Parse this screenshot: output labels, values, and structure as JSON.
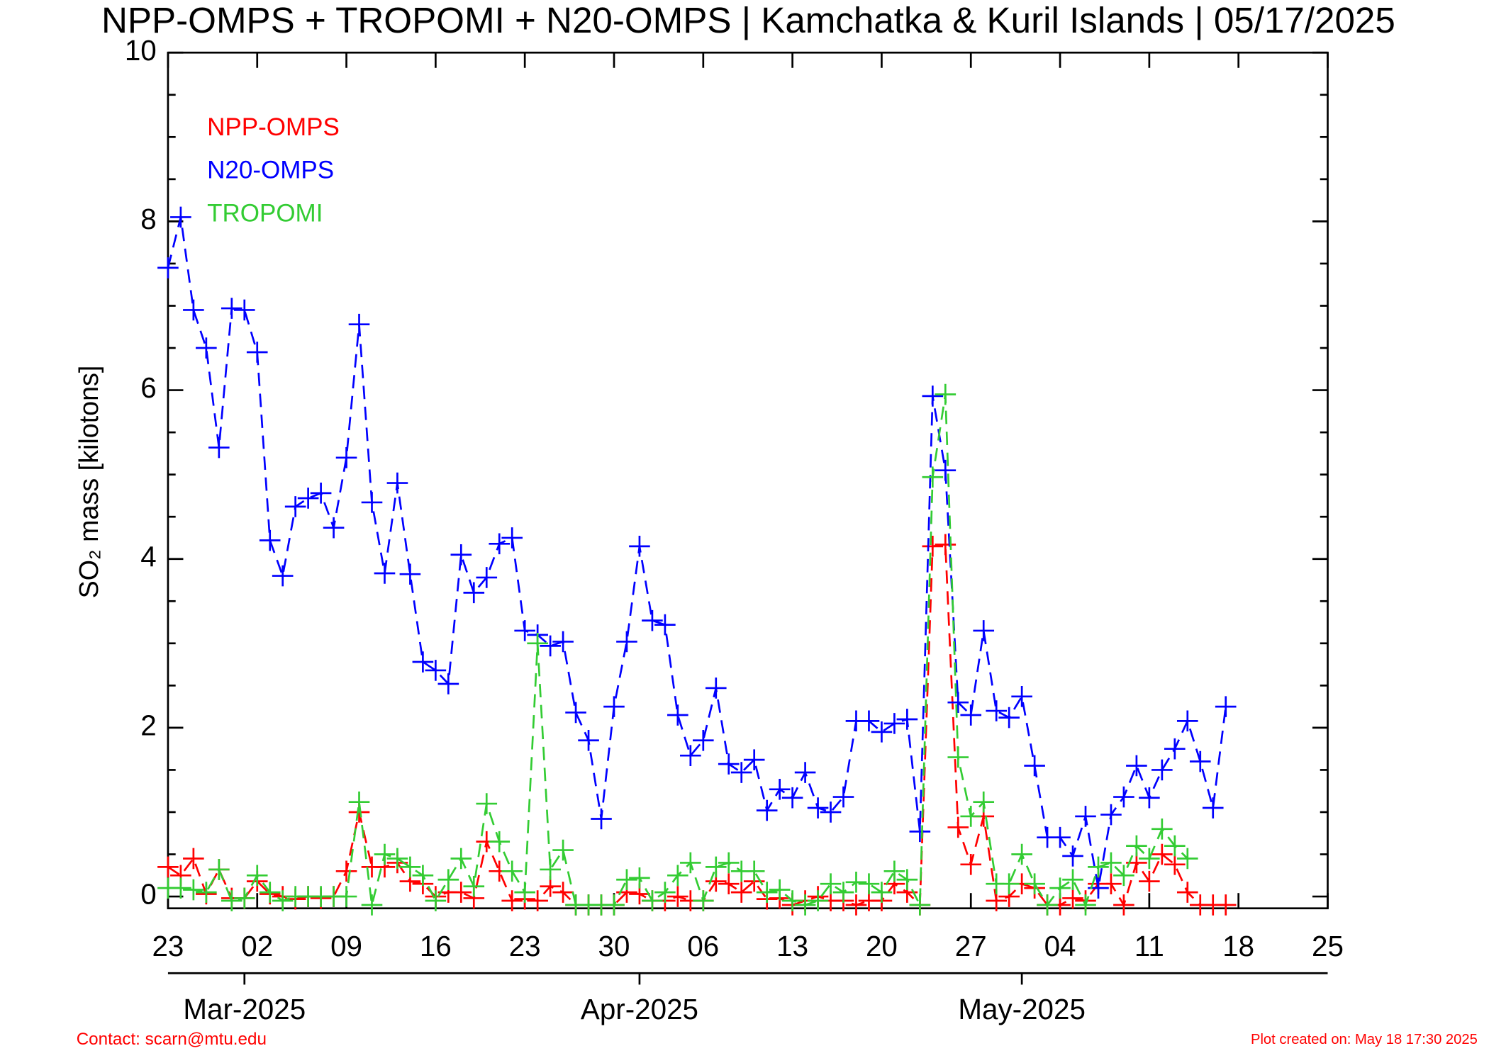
{
  "chart_data": {
    "type": "line",
    "title": "NPP-OMPS + TROPOMI + N20-OMPS | Kamchatka & Kuril Islands | 05/17/2025",
    "y_label": "SO₂ mass [kilotons]",
    "contact": "Contact: scarn@mtu.edu",
    "created": "Plot created on: May 18 17:30 2025",
    "x": [
      "2025-02-23",
      "2025-02-24",
      "2025-02-25",
      "2025-02-26",
      "2025-02-27",
      "2025-02-28",
      "2025-03-01",
      "2025-03-02",
      "2025-03-03",
      "2025-03-04",
      "2025-03-05",
      "2025-03-06",
      "2025-03-07",
      "2025-03-08",
      "2025-03-09",
      "2025-03-10",
      "2025-03-11",
      "2025-03-12",
      "2025-03-13",
      "2025-03-14",
      "2025-03-15",
      "2025-03-16",
      "2025-03-17",
      "2025-03-18",
      "2025-03-19",
      "2025-03-20",
      "2025-03-21",
      "2025-03-22",
      "2025-03-23",
      "2025-03-24",
      "2025-03-25",
      "2025-03-26",
      "2025-03-27",
      "2025-03-28",
      "2025-03-29",
      "2025-03-30",
      "2025-03-31",
      "2025-04-01",
      "2025-04-02",
      "2025-04-03",
      "2025-04-04",
      "2025-04-05",
      "2025-04-06",
      "2025-04-07",
      "2025-04-08",
      "2025-04-09",
      "2025-04-10",
      "2025-04-11",
      "2025-04-12",
      "2025-04-13",
      "2025-04-14",
      "2025-04-15",
      "2025-04-16",
      "2025-04-17",
      "2025-04-18",
      "2025-04-19",
      "2025-04-20",
      "2025-04-21",
      "2025-04-22",
      "2025-04-23",
      "2025-04-24",
      "2025-04-25",
      "2025-04-26",
      "2025-04-27",
      "2025-04-28",
      "2025-04-29",
      "2025-04-30",
      "2025-05-01",
      "2025-05-02",
      "2025-05-03",
      "2025-05-04",
      "2025-05-05",
      "2025-05-06",
      "2025-05-07",
      "2025-05-08",
      "2025-05-09",
      "2025-05-10",
      "2025-05-11",
      "2025-05-12",
      "2025-05-13",
      "2025-05-14",
      "2025-05-15",
      "2025-05-16",
      "2025-05-17"
    ],
    "series": [
      {
        "name": "NPP-OMPS",
        "color": "#ff0000",
        "values": [
          0.35,
          0.25,
          0.45,
          0.03,
          0.32,
          -0.02,
          -0.02,
          0.18,
          0.03,
          0.0,
          -0.03,
          0.0,
          -0.02,
          0.0,
          0.3,
          1.0,
          0.35,
          0.35,
          0.4,
          0.18,
          0.15,
          0.0,
          0.05,
          0.05,
          -0.02,
          0.65,
          0.3,
          -0.05,
          -0.03,
          -0.05,
          0.12,
          0.05,
          -0.1,
          -0.1,
          -0.1,
          -0.1,
          0.05,
          0.03,
          -0.05,
          -0.05,
          0.0,
          -0.05,
          -0.05,
          0.18,
          0.15,
          0.05,
          0.18,
          -0.03,
          -0.02,
          -0.1,
          -0.05,
          0.0,
          -0.05,
          -0.05,
          -0.1,
          -0.05,
          -0.05,
          0.15,
          0.05,
          -0.1,
          4.15,
          4.17,
          0.82,
          0.38,
          0.95,
          -0.05,
          0.0,
          0.15,
          0.1,
          -0.1,
          -0.1,
          -0.02,
          -0.05,
          0.15,
          0.15,
          -0.1,
          0.4,
          0.18,
          0.5,
          0.38,
          0.05,
          -0.1,
          -0.1,
          -0.1
        ]
      },
      {
        "name": "N20-OMPS",
        "color": "#0000ff",
        "values": [
          7.45,
          8.05,
          6.95,
          6.5,
          5.32,
          6.97,
          6.95,
          6.45,
          4.22,
          3.8,
          4.62,
          4.72,
          4.78,
          4.37,
          5.2,
          6.78,
          4.67,
          3.83,
          4.9,
          3.82,
          2.78,
          2.68,
          2.52,
          4.05,
          3.6,
          3.78,
          4.18,
          4.25,
          3.15,
          3.1,
          2.97,
          3.02,
          2.18,
          1.85,
          0.92,
          2.25,
          3.02,
          4.15,
          3.27,
          3.22,
          2.15,
          1.67,
          1.85,
          2.47,
          1.57,
          1.47,
          1.62,
          1.02,
          1.27,
          1.17,
          1.47,
          1.05,
          1.0,
          1.18,
          2.08,
          2.08,
          1.95,
          2.05,
          2.1,
          0.77,
          5.93,
          5.05,
          2.3,
          2.15,
          3.15,
          2.2,
          2.12,
          2.37,
          1.55,
          0.7,
          0.7,
          0.48,
          0.95,
          0.1,
          0.97,
          1.18,
          1.55,
          1.17,
          1.5,
          1.75,
          2.08,
          1.6,
          1.05,
          2.25
        ]
      },
      {
        "name": "TROPOMI",
        "color": "#33cc33",
        "values": [
          0.1,
          0.1,
          0.08,
          0.05,
          0.32,
          -0.05,
          -0.02,
          0.25,
          0.05,
          -0.05,
          0,
          0,
          0,
          0,
          0,
          1.12,
          -0.1,
          0.5,
          0.45,
          0.35,
          0.25,
          -0.05,
          0.2,
          0.45,
          0.12,
          1.1,
          0.65,
          0.3,
          0.05,
          3.0,
          0.32,
          0.55,
          -0.1,
          -0.1,
          -0.1,
          -0.1,
          0.2,
          0.22,
          -0.05,
          0.05,
          0.25,
          0.4,
          -0.05,
          0.35,
          0.4,
          0.3,
          0.3,
          0.05,
          0.08,
          -0.05,
          -0.1,
          -0.05,
          0.15,
          0.05,
          0.17,
          0.15,
          0.05,
          0.3,
          0.2,
          -0.1,
          4.97,
          5.95,
          1.65,
          0.95,
          1.12,
          0.15,
          0.15,
          0.5,
          0.15,
          -0.1,
          0.1,
          0.2,
          -0.1,
          0.35,
          0.4,
          0.25,
          0.6,
          0.45,
          0.8,
          0.6,
          0.45,
          null,
          null,
          null
        ]
      }
    ],
    "xlim": [
      "2025-02-23",
      "2025-05-25"
    ],
    "xticks": [
      {
        "value": "2025-02-23",
        "label": "23"
      },
      {
        "value": "2025-03-02",
        "label": "02"
      },
      {
        "value": "2025-03-09",
        "label": "09"
      },
      {
        "value": "2025-03-16",
        "label": "16"
      },
      {
        "value": "2025-03-23",
        "label": "23"
      },
      {
        "value": "2025-03-30",
        "label": "30"
      },
      {
        "value": "2025-04-06",
        "label": "06"
      },
      {
        "value": "2025-04-13",
        "label": "13"
      },
      {
        "value": "2025-04-20",
        "label": "20"
      },
      {
        "value": "2025-04-27",
        "label": "27"
      },
      {
        "value": "2025-05-04",
        "label": "04"
      },
      {
        "value": "2025-05-11",
        "label": "11"
      },
      {
        "value": "2025-05-18",
        "label": "18"
      },
      {
        "value": "2025-05-25",
        "label": "25"
      }
    ],
    "month_ticks": [
      {
        "value": "2025-03-01",
        "label": "Mar-2025"
      },
      {
        "value": "2025-04-01",
        "label": "Apr-2025"
      },
      {
        "value": "2025-05-01",
        "label": "May-2025"
      }
    ],
    "ylim": [
      -0.14,
      10
    ],
    "yticks": [
      0,
      2,
      4,
      6,
      8,
      10
    ],
    "legend": "upper-left"
  }
}
